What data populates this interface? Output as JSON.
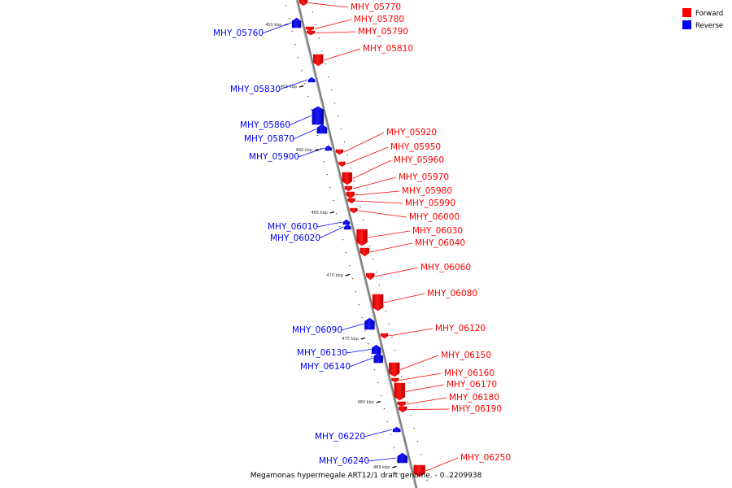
{
  "caption": "Megamonas hypermegale ART12/1 draft genome. - 0..2209938",
  "legend": {
    "forward_label": "Forward",
    "reverse_label": "Reverse",
    "forward_color": "#ff0000",
    "reverse_color": "#0000ff"
  },
  "position_ticks": [
    {
      "kbp": 450,
      "label": "450 kbp"
    },
    {
      "kbp": 455,
      "label": "455 kbp"
    },
    {
      "kbp": 460,
      "label": "460 kbp"
    },
    {
      "kbp": 465,
      "label": "465 kbp"
    },
    {
      "kbp": 470,
      "label": "470 kbp"
    },
    {
      "kbp": 475,
      "label": "475 kbp"
    },
    {
      "kbp": 480,
      "label": "480 kbp"
    },
    {
      "kbp": 485,
      "label": "485 kbp"
    }
  ],
  "genes": [
    {
      "id": "MHY_05770",
      "strand": "forward"
    },
    {
      "id": "MHY_05780",
      "strand": "forward"
    },
    {
      "id": "MHY_05790",
      "strand": "forward"
    },
    {
      "id": "MHY_05760",
      "strand": "reverse"
    },
    {
      "id": "MHY_05810",
      "strand": "forward"
    },
    {
      "id": "MHY_05830",
      "strand": "reverse"
    },
    {
      "id": "MHY_05860",
      "strand": "reverse"
    },
    {
      "id": "MHY_05870",
      "strand": "reverse"
    },
    {
      "id": "MHY_05900",
      "strand": "reverse"
    },
    {
      "id": "MHY_05920",
      "strand": "forward"
    },
    {
      "id": "MHY_05950",
      "strand": "forward"
    },
    {
      "id": "MHY_05960",
      "strand": "forward"
    },
    {
      "id": "MHY_05970",
      "strand": "forward"
    },
    {
      "id": "MHY_05980",
      "strand": "forward"
    },
    {
      "id": "MHY_05990",
      "strand": "forward"
    },
    {
      "id": "MHY_06000",
      "strand": "forward"
    },
    {
      "id": "MHY_06010",
      "strand": "reverse"
    },
    {
      "id": "MHY_06020",
      "strand": "reverse"
    },
    {
      "id": "MHY_06030",
      "strand": "forward"
    },
    {
      "id": "MHY_06040",
      "strand": "forward"
    },
    {
      "id": "MHY_06060",
      "strand": "forward"
    },
    {
      "id": "MHY_06080",
      "strand": "forward"
    },
    {
      "id": "MHY_06090",
      "strand": "reverse"
    },
    {
      "id": "MHY_06120",
      "strand": "forward"
    },
    {
      "id": "MHY_06130",
      "strand": "reverse"
    },
    {
      "id": "MHY_06140",
      "strand": "reverse"
    },
    {
      "id": "MHY_06150",
      "strand": "forward"
    },
    {
      "id": "MHY_06160",
      "strand": "forward"
    },
    {
      "id": "MHY_06170",
      "strand": "forward"
    },
    {
      "id": "MHY_06180",
      "strand": "forward"
    },
    {
      "id": "MHY_06190",
      "strand": "forward"
    },
    {
      "id": "MHY_06220",
      "strand": "reverse"
    },
    {
      "id": "MHY_06240",
      "strand": "reverse"
    },
    {
      "id": "MHY_06250",
      "strand": "forward"
    }
  ]
}
